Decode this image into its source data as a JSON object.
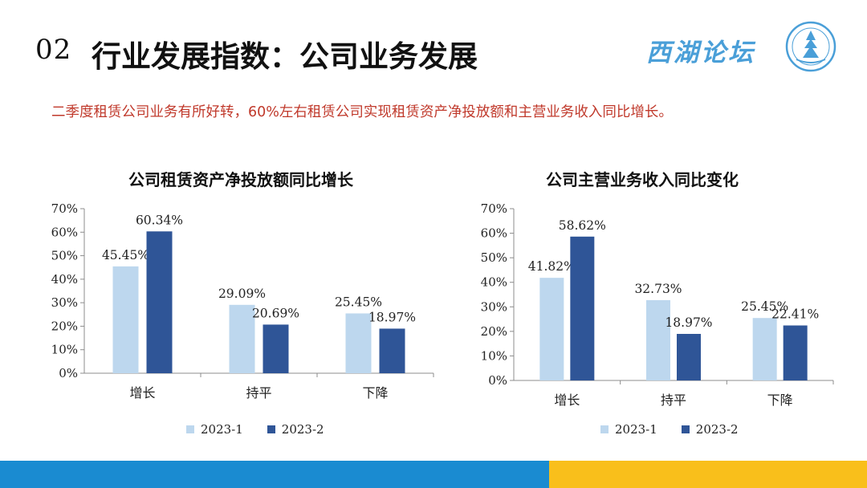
{
  "header": {
    "number": "02",
    "title": "行业发展指数：公司业务发展",
    "brand": "西湖论坛"
  },
  "subtitle": "二季度租赁公司业务有所好转，60%左右租赁公司实现租赁资产净投放额和主营业务收入同比增长。",
  "colors": {
    "series1": "#bdd7ee",
    "series2": "#2f5597",
    "footer_blue": "#1a8bd1",
    "footer_yellow": "#f9bf1b",
    "subtitle": "#c0392b"
  },
  "chart_data": [
    {
      "type": "bar",
      "title": "公司租赁资产净投放额同比增长",
      "categories": [
        "增长",
        "持平",
        "下降"
      ],
      "series": [
        {
          "name": "2023-1",
          "values": [
            45.45,
            29.09,
            25.45
          ],
          "labels": [
            "45.45%",
            "29.09%",
            "25.45%"
          ]
        },
        {
          "name": "2023-2",
          "values": [
            60.34,
            20.69,
            18.97
          ],
          "labels": [
            "60.34%",
            "20.69%",
            "18.97%"
          ]
        }
      ],
      "yticks": [
        "0%",
        "10%",
        "20%",
        "30%",
        "40%",
        "50%",
        "60%",
        "70%"
      ],
      "ylim": [
        0,
        70
      ],
      "legend": "bottom",
      "grid": false
    },
    {
      "type": "bar",
      "title": "公司主营业务收入同比变化",
      "categories": [
        "增长",
        "持平",
        "下降"
      ],
      "series": [
        {
          "name": "2023-1",
          "values": [
            41.82,
            32.73,
            25.45
          ],
          "labels": [
            "41.82%",
            "32.73%",
            "25.45%"
          ]
        },
        {
          "name": "2023-2",
          "values": [
            58.62,
            18.97,
            22.41
          ],
          "labels": [
            "58.62%",
            "18.97%",
            "22.41%"
          ]
        }
      ],
      "yticks": [
        "0%",
        "10%",
        "20%",
        "30%",
        "40%",
        "50%",
        "60%",
        "70%"
      ],
      "ylim": [
        0,
        70
      ],
      "legend": "bottom",
      "grid": false
    }
  ]
}
